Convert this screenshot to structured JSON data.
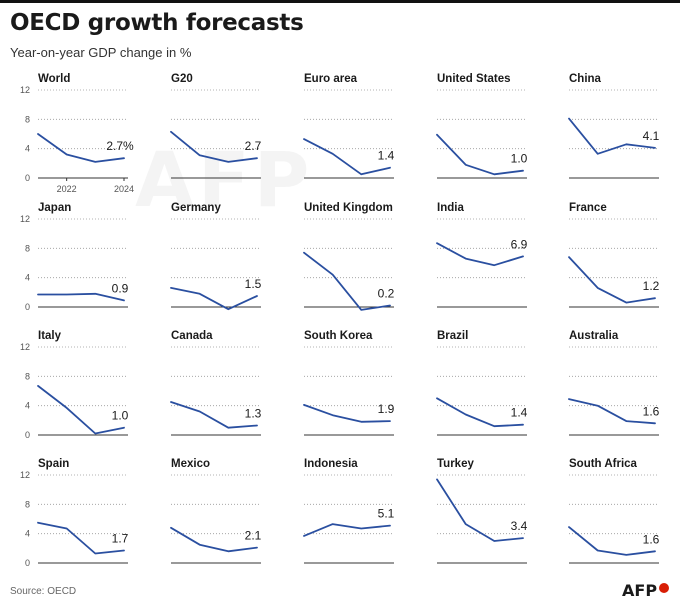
{
  "header": {
    "title": "OECD growth forecasts",
    "subtitle": "Year-on-year GDP change in %"
  },
  "footer": {
    "source": "Source: OECD",
    "logo": "AFP"
  },
  "watermark": "AFP",
  "colors": {
    "line": "#2a4fa0",
    "grid": "#9a9a9a",
    "axis": "#333333",
    "text": "#1a1a1a"
  },
  "chart_data": [
    {
      "type": "line",
      "title": "World",
      "x": [
        2021,
        2022,
        2023,
        2024
      ],
      "values": [
        6.0,
        3.2,
        2.2,
        2.7
      ],
      "end_label": "2.7%",
      "ylim": [
        0,
        12
      ],
      "yticks": [
        "0",
        "4",
        "8",
        "12"
      ],
      "xticks": [
        "2022",
        "2024"
      ]
    },
    {
      "type": "line",
      "title": "G20",
      "x": [
        2021,
        2022,
        2023,
        2024
      ],
      "values": [
        6.3,
        3.1,
        2.2,
        2.7
      ],
      "end_label": "2.7",
      "ylim": [
        0,
        12
      ]
    },
    {
      "type": "line",
      "title": "Euro area",
      "x": [
        2021,
        2022,
        2023,
        2024
      ],
      "values": [
        5.3,
        3.3,
        0.5,
        1.4
      ],
      "end_label": "1.4",
      "ylim": [
        0,
        12
      ]
    },
    {
      "type": "line",
      "title": "United States",
      "x": [
        2021,
        2022,
        2023,
        2024
      ],
      "values": [
        5.9,
        1.8,
        0.5,
        1.0
      ],
      "end_label": "1.0",
      "ylim": [
        0,
        12
      ]
    },
    {
      "type": "line",
      "title": "China",
      "x": [
        2021,
        2022,
        2023,
        2024
      ],
      "values": [
        8.1,
        3.3,
        4.6,
        4.1
      ],
      "end_label": "4.1",
      "ylim": [
        0,
        12
      ]
    },
    {
      "type": "line",
      "title": "Japan",
      "x": [
        2021,
        2022,
        2023,
        2024
      ],
      "values": [
        1.7,
        1.7,
        1.8,
        0.9
      ],
      "end_label": "0.9",
      "ylim": [
        0,
        12
      ],
      "yticks": [
        "0",
        "4",
        "8",
        "12"
      ]
    },
    {
      "type": "line",
      "title": "Germany",
      "x": [
        2021,
        2022,
        2023,
        2024
      ],
      "values": [
        2.6,
        1.8,
        -0.3,
        1.5
      ],
      "end_label": "1.5",
      "ylim": [
        0,
        12
      ]
    },
    {
      "type": "line",
      "title": "United Kingdom",
      "x": [
        2021,
        2022,
        2023,
        2024
      ],
      "values": [
        7.4,
        4.4,
        -0.4,
        0.2
      ],
      "end_label": "0.2",
      "ylim": [
        0,
        12
      ]
    },
    {
      "type": "line",
      "title": "India",
      "x": [
        2021,
        2022,
        2023,
        2024
      ],
      "values": [
        8.7,
        6.6,
        5.7,
        6.9
      ],
      "end_label": "6.9",
      "ylim": [
        0,
        12
      ]
    },
    {
      "type": "line",
      "title": "France",
      "x": [
        2021,
        2022,
        2023,
        2024
      ],
      "values": [
        6.8,
        2.6,
        0.6,
        1.2
      ],
      "end_label": "1.2",
      "ylim": [
        0,
        12
      ]
    },
    {
      "type": "line",
      "title": "Italy",
      "x": [
        2021,
        2022,
        2023,
        2024
      ],
      "values": [
        6.7,
        3.7,
        0.2,
        1.0
      ],
      "end_label": "1.0",
      "ylim": [
        0,
        12
      ],
      "yticks": [
        "0",
        "4",
        "8",
        "12"
      ]
    },
    {
      "type": "line",
      "title": "Canada",
      "x": [
        2021,
        2022,
        2023,
        2024
      ],
      "values": [
        4.5,
        3.2,
        1.0,
        1.3
      ],
      "end_label": "1.3",
      "ylim": [
        0,
        12
      ]
    },
    {
      "type": "line",
      "title": "South Korea",
      "x": [
        2021,
        2022,
        2023,
        2024
      ],
      "values": [
        4.1,
        2.7,
        1.8,
        1.9
      ],
      "end_label": "1.9",
      "ylim": [
        0,
        12
      ]
    },
    {
      "type": "line",
      "title": "Brazil",
      "x": [
        2021,
        2022,
        2023,
        2024
      ],
      "values": [
        5.0,
        2.8,
        1.2,
        1.4
      ],
      "end_label": "1.4",
      "ylim": [
        0,
        12
      ]
    },
    {
      "type": "line",
      "title": "Australia",
      "x": [
        2021,
        2022,
        2023,
        2024
      ],
      "values": [
        4.9,
        4.0,
        1.9,
        1.6
      ],
      "end_label": "1.6",
      "ylim": [
        0,
        12
      ]
    },
    {
      "type": "line",
      "title": "Spain",
      "x": [
        2021,
        2022,
        2023,
        2024
      ],
      "values": [
        5.5,
        4.7,
        1.3,
        1.7
      ],
      "end_label": "1.7",
      "ylim": [
        0,
        12
      ],
      "yticks": [
        "0",
        "4",
        "8",
        "12"
      ]
    },
    {
      "type": "line",
      "title": "Mexico",
      "x": [
        2021,
        2022,
        2023,
        2024
      ],
      "values": [
        4.8,
        2.5,
        1.6,
        2.1
      ],
      "end_label": "2.1",
      "ylim": [
        0,
        12
      ]
    },
    {
      "type": "line",
      "title": "Indonesia",
      "x": [
        2021,
        2022,
        2023,
        2024
      ],
      "values": [
        3.7,
        5.3,
        4.7,
        5.1
      ],
      "end_label": "5.1",
      "ylim": [
        0,
        12
      ]
    },
    {
      "type": "line",
      "title": "Turkey",
      "x": [
        2021,
        2022,
        2023,
        2024
      ],
      "values": [
        11.4,
        5.3,
        3.0,
        3.4
      ],
      "end_label": "3.4",
      "ylim": [
        0,
        12
      ]
    },
    {
      "type": "line",
      "title": "South Africa",
      "x": [
        2021,
        2022,
        2023,
        2024
      ],
      "values": [
        4.9,
        1.7,
        1.1,
        1.6
      ],
      "end_label": "1.6",
      "ylim": [
        0,
        12
      ]
    }
  ]
}
